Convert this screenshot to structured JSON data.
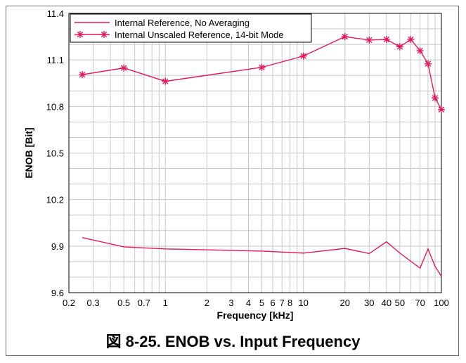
{
  "caption": "図 8-25. ENOB vs. Input Frequency",
  "colors": {
    "series": "#e5175e",
    "grid": "#c8c8c8",
    "axis": "#000000"
  },
  "chart_data": {
    "type": "line",
    "xlabel": "Frequency [kHz]",
    "ylabel": "ENOB [Bit]",
    "xscale": "log",
    "xlim": [
      0.2,
      100
    ],
    "ylim": [
      9.6,
      11.4
    ],
    "xticks": [
      0.2,
      0.3,
      0.5,
      0.7,
      1,
      2,
      3,
      4,
      5,
      6,
      7,
      8,
      10,
      20,
      30,
      40,
      50,
      70,
      100
    ],
    "xtick_labels": [
      "0.2",
      "0.3",
      "0.5",
      "0.7",
      "1",
      "2",
      "3",
      "4",
      "5",
      "6",
      "7",
      "8",
      "10",
      "20",
      "30",
      "40",
      "50",
      "70",
      "100"
    ],
    "yticks": [
      9.6,
      9.9,
      10.2,
      10.5,
      10.8,
      11.1,
      11.4
    ],
    "ytick_labels": [
      "9.6",
      "9.9",
      "10.2",
      "10.5",
      "10.8",
      "11.1",
      "11.4"
    ],
    "grid": true,
    "legend_position": "top-left",
    "series": [
      {
        "name": "Internal Reference, No Averaging",
        "marker": "none",
        "x": [
          0.25,
          0.5,
          1,
          5,
          10,
          20,
          30,
          40,
          50,
          70,
          80,
          90,
          100
        ],
        "y": [
          9.955,
          9.895,
          9.882,
          9.868,
          9.855,
          9.885,
          9.852,
          9.928,
          9.855,
          9.758,
          9.882,
          9.77,
          9.705
        ]
      },
      {
        "name": "Internal Unscaled Reference, 14-bit Mode",
        "marker": "star",
        "x": [
          0.25,
          0.5,
          1,
          5,
          10,
          20,
          30,
          40,
          50,
          60,
          70,
          80,
          90,
          100
        ],
        "y": [
          11.005,
          11.048,
          10.962,
          11.052,
          11.125,
          11.25,
          11.228,
          11.232,
          11.185,
          11.232,
          11.16,
          11.075,
          10.855,
          10.78
        ]
      }
    ]
  }
}
